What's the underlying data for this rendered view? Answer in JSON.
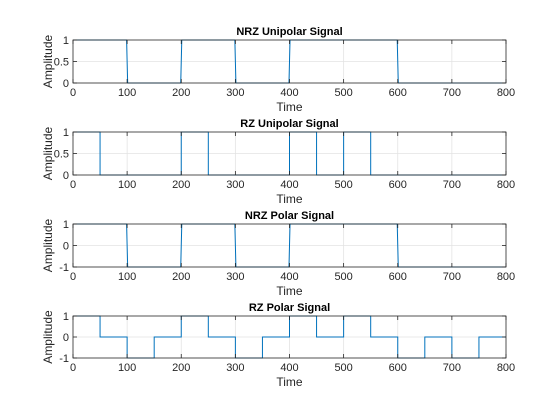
{
  "chart_data": [
    {
      "type": "line",
      "title": "NRZ Unipolar Signal",
      "xlabel": "Time",
      "ylabel": "Amplitude",
      "xlim": [
        0,
        800
      ],
      "ylim": [
        0,
        1
      ],
      "xticks": [
        "0",
        "100",
        "200",
        "300",
        "400",
        "500",
        "600",
        "700",
        "800"
      ],
      "yticks": [
        "0",
        "0.5",
        "1"
      ],
      "grid": true,
      "series": [
        {
          "color": "#0072bd",
          "x": [
            0,
            99,
            101,
            199,
            201,
            299,
            301,
            399,
            401,
            599,
            601,
            800
          ],
          "y": [
            1,
            1,
            0,
            0,
            1,
            1,
            0,
            0,
            1,
            1,
            0,
            0
          ]
        }
      ]
    },
    {
      "type": "line",
      "title": "RZ Unipolar Signal",
      "xlabel": "Time",
      "ylabel": "Amplitude",
      "xlim": [
        0,
        800
      ],
      "ylim": [
        0,
        1
      ],
      "xticks": [
        "0",
        "100",
        "200",
        "300",
        "400",
        "500",
        "600",
        "700",
        "800"
      ],
      "yticks": [
        "0",
        "0.5",
        "1"
      ],
      "grid": true,
      "series": [
        {
          "color": "#0072bd",
          "x": [
            0,
            50,
            50,
            200,
            200,
            250,
            250,
            400,
            400,
            450,
            450,
            500,
            500,
            550,
            550,
            800
          ],
          "y": [
            1,
            1,
            0,
            0,
            1,
            1,
            0,
            0,
            1,
            1,
            0,
            0,
            1,
            1,
            0,
            0
          ]
        }
      ]
    },
    {
      "type": "line",
      "title": "NRZ Polar Signal",
      "xlabel": "Time",
      "ylabel": "Amplitude",
      "xlim": [
        0,
        800
      ],
      "ylim": [
        -1,
        1
      ],
      "xticks": [
        "0",
        "100",
        "200",
        "300",
        "400",
        "500",
        "600",
        "700",
        "800"
      ],
      "yticks": [
        "-1",
        "0",
        "1"
      ],
      "grid": true,
      "series": [
        {
          "color": "#0072bd",
          "x": [
            0,
            99,
            101,
            199,
            201,
            299,
            301,
            399,
            401,
            599,
            601,
            800
          ],
          "y": [
            1,
            1,
            -1,
            -1,
            1,
            1,
            -1,
            -1,
            1,
            1,
            -1,
            -1
          ]
        }
      ]
    },
    {
      "type": "line",
      "title": "RZ Polar Signal",
      "xlabel": "Time",
      "ylabel": "Amplitude",
      "xlim": [
        0,
        800
      ],
      "ylim": [
        -1,
        1
      ],
      "xticks": [
        "0",
        "100",
        "200",
        "300",
        "400",
        "500",
        "600",
        "700",
        "800"
      ],
      "yticks": [
        "-1",
        "0",
        "1"
      ],
      "grid": true,
      "series": [
        {
          "color": "#0072bd",
          "x": [
            0,
            50,
            50,
            100,
            100,
            150,
            150,
            200,
            200,
            250,
            250,
            300,
            300,
            350,
            350,
            400,
            400,
            450,
            450,
            500,
            500,
            550,
            550,
            600,
            600,
            650,
            650,
            700,
            700,
            750,
            750,
            800
          ],
          "y": [
            1,
            1,
            0,
            0,
            -1,
            -1,
            0,
            0,
            1,
            1,
            0,
            0,
            -1,
            -1,
            0,
            0,
            1,
            1,
            0,
            0,
            1,
            1,
            0,
            0,
            -1,
            -1,
            0,
            0,
            -1,
            -1,
            0,
            0
          ]
        }
      ]
    }
  ]
}
